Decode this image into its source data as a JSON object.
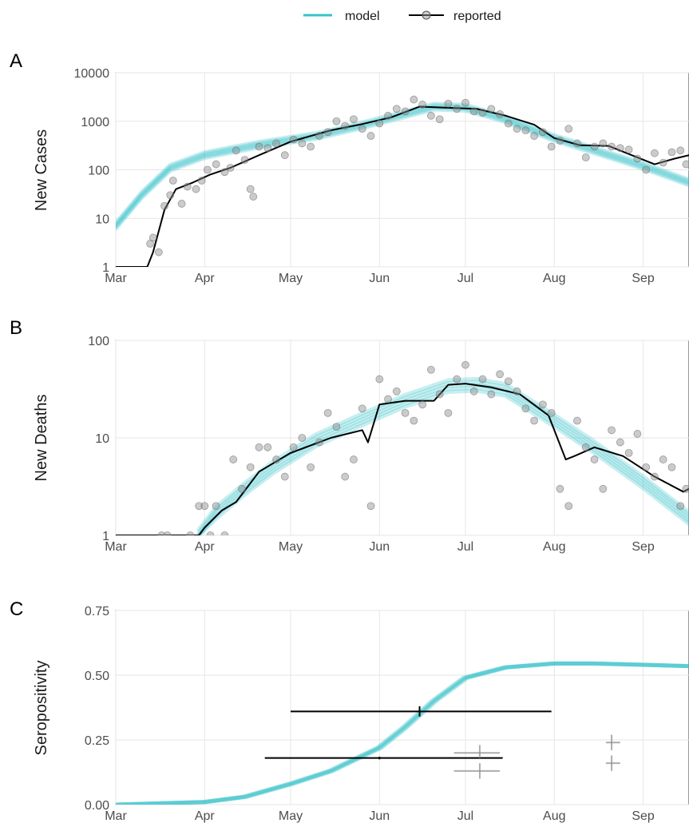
{
  "legend": {
    "position": "top-center",
    "items": [
      {
        "label": "model",
        "color": "#36c3c9",
        "marker": "line"
      },
      {
        "label": "reported",
        "color": "#000000",
        "marker": "line-with-circle"
      }
    ]
  },
  "chart_data": [
    {
      "panel": "A",
      "type": "line",
      "ylabel": "New Cases",
      "xlabel": "",
      "yscale": "log",
      "ylim": [
        1,
        10000
      ],
      "yticks": [
        "1",
        "10",
        "100",
        "1000",
        "10000"
      ],
      "xlim_days": [
        0,
        200
      ],
      "x_ticks": [
        "Mar",
        "Apr",
        "May",
        "Jun",
        "Jul",
        "Aug",
        "Sep"
      ],
      "grid": true,
      "series": [
        {
          "name": "model",
          "kind": "ensemble-band",
          "color": "#36c3c9",
          "dates": [
            "2020-03-01",
            "2020-03-10",
            "2020-03-20",
            "2020-04-01",
            "2020-04-20",
            "2020-05-10",
            "2020-05-25",
            "2020-06-10",
            "2020-06-20",
            "2020-07-01",
            "2020-07-15",
            "2020-08-01",
            "2020-08-15",
            "2020-09-01",
            "2020-09-17"
          ],
          "values": [
            7,
            30,
            110,
            200,
            330,
            500,
            800,
            1400,
            2000,
            1900,
            1100,
            450,
            250,
            120,
            55
          ]
        },
        {
          "name": "reported",
          "kind": "line",
          "color": "#000000",
          "dates": [
            "2020-03-01",
            "2020-03-12",
            "2020-03-14",
            "2020-03-18",
            "2020-03-22",
            "2020-03-28",
            "2020-04-03",
            "2020-04-10",
            "2020-04-20",
            "2020-05-01",
            "2020-05-15",
            "2020-05-25",
            "2020-06-05",
            "2020-06-15",
            "2020-06-25",
            "2020-07-05",
            "2020-07-15",
            "2020-07-25",
            "2020-08-01",
            "2020-08-10",
            "2020-08-20",
            "2020-08-28",
            "2020-09-05",
            "2020-09-12",
            "2020-09-17"
          ],
          "values": [
            1,
            1,
            2,
            15,
            40,
            55,
            80,
            110,
            200,
            380,
            650,
            850,
            1200,
            2000,
            1900,
            1800,
            1300,
            850,
            450,
            320,
            310,
            200,
            130,
            170,
            200
          ]
        },
        {
          "name": "reported",
          "kind": "points",
          "color": "#000000",
          "dates": [
            "2020-03-13",
            "2020-03-14",
            "2020-03-16",
            "2020-03-18",
            "2020-03-20",
            "2020-03-21",
            "2020-03-24",
            "2020-03-26",
            "2020-03-29",
            "2020-03-31",
            "2020-04-02",
            "2020-04-05",
            "2020-04-08",
            "2020-04-10",
            "2020-04-12",
            "2020-04-15",
            "2020-04-17",
            "2020-04-18",
            "2020-04-20",
            "2020-04-23",
            "2020-04-26",
            "2020-04-29",
            "2020-05-02",
            "2020-05-05",
            "2020-05-08",
            "2020-05-11",
            "2020-05-14",
            "2020-05-17",
            "2020-05-20",
            "2020-05-23",
            "2020-05-26",
            "2020-05-29",
            "2020-06-01",
            "2020-06-04",
            "2020-06-07",
            "2020-06-10",
            "2020-06-13",
            "2020-06-16",
            "2020-06-19",
            "2020-06-22",
            "2020-06-25",
            "2020-06-28",
            "2020-07-01",
            "2020-07-04",
            "2020-07-07",
            "2020-07-10",
            "2020-07-13",
            "2020-07-16",
            "2020-07-19",
            "2020-07-22",
            "2020-07-25",
            "2020-07-28",
            "2020-07-31",
            "2020-08-03",
            "2020-08-06",
            "2020-08-09",
            "2020-08-12",
            "2020-08-15",
            "2020-08-18",
            "2020-08-21",
            "2020-08-24",
            "2020-08-27",
            "2020-08-30",
            "2020-09-02",
            "2020-09-05",
            "2020-09-08",
            "2020-09-11",
            "2020-09-14",
            "2020-09-16"
          ],
          "values": [
            3,
            4,
            2,
            18,
            30,
            60,
            20,
            45,
            40,
            60,
            100,
            130,
            90,
            110,
            250,
            160,
            40,
            28,
            300,
            280,
            350,
            200,
            420,
            350,
            300,
            500,
            600,
            1000,
            800,
            1100,
            700,
            500,
            900,
            1300,
            1800,
            1600,
            2800,
            2200,
            1300,
            1100,
            2300,
            1800,
            2400,
            1600,
            1500,
            1800,
            1400,
            900,
            700,
            650,
            500,
            600,
            300,
            400,
            700,
            350,
            180,
            300,
            350,
            300,
            280,
            260,
            170,
            100,
            220,
            140,
            230,
            250,
            130
          ]
        }
      ]
    },
    {
      "panel": "B",
      "type": "line",
      "ylabel": "New Deaths",
      "xlabel": "",
      "yscale": "log",
      "ylim": [
        1,
        100
      ],
      "yticks": [
        "1",
        "10",
        "100"
      ],
      "xlim_days": [
        0,
        200
      ],
      "x_ticks": [
        "Mar",
        "Apr",
        "May",
        "Jun",
        "Jul",
        "Aug",
        "Sep"
      ],
      "grid": true,
      "series": [
        {
          "name": "model",
          "kind": "ensemble-band",
          "color": "#36c3c9",
          "dates": [
            "2020-03-30",
            "2020-04-05",
            "2020-04-15",
            "2020-04-25",
            "2020-05-10",
            "2020-05-25",
            "2020-06-10",
            "2020-06-25",
            "2020-07-05",
            "2020-07-15",
            "2020-08-01",
            "2020-08-15",
            "2020-09-01",
            "2020-09-17"
          ],
          "values": [
            1,
            1.7,
            3,
            5,
            9.5,
            15,
            24,
            34,
            35,
            31,
            15,
            8,
            3.5,
            1.5
          ]
        },
        {
          "name": "reported",
          "kind": "line",
          "color": "#000000",
          "dates": [
            "2020-03-01",
            "2020-03-30",
            "2020-04-01",
            "2020-04-07",
            "2020-04-12",
            "2020-04-20",
            "2020-05-01",
            "2020-05-15",
            "2020-05-26",
            "2020-05-28",
            "2020-06-01",
            "2020-06-10",
            "2020-06-20",
            "2020-06-25",
            "2020-07-01",
            "2020-07-10",
            "2020-07-20",
            "2020-07-30",
            "2020-08-05",
            "2020-08-08",
            "2020-08-15",
            "2020-08-25",
            "2020-09-05",
            "2020-09-15",
            "2020-09-17"
          ],
          "values": [
            1,
            1,
            1.2,
            1.8,
            2.2,
            4.5,
            7,
            10,
            12,
            9,
            22,
            24,
            24,
            35,
            36,
            33,
            28,
            17,
            6,
            6.5,
            8,
            6.5,
            4,
            2.8,
            3
          ]
        },
        {
          "name": "reported",
          "kind": "points",
          "color": "#000000",
          "dates": [
            "2020-03-17",
            "2020-03-19",
            "2020-03-27",
            "2020-03-30",
            "2020-04-01",
            "2020-04-03",
            "2020-04-05",
            "2020-04-08",
            "2020-04-11",
            "2020-04-14",
            "2020-04-17",
            "2020-04-20",
            "2020-04-23",
            "2020-04-26",
            "2020-04-29",
            "2020-05-02",
            "2020-05-05",
            "2020-05-08",
            "2020-05-11",
            "2020-05-14",
            "2020-05-17",
            "2020-05-20",
            "2020-05-23",
            "2020-05-26",
            "2020-05-29",
            "2020-06-01",
            "2020-06-04",
            "2020-06-07",
            "2020-06-10",
            "2020-06-13",
            "2020-06-16",
            "2020-06-19",
            "2020-06-22",
            "2020-06-25",
            "2020-06-28",
            "2020-07-01",
            "2020-07-04",
            "2020-07-07",
            "2020-07-10",
            "2020-07-13",
            "2020-07-16",
            "2020-07-19",
            "2020-07-22",
            "2020-07-25",
            "2020-07-28",
            "2020-07-31",
            "2020-08-03",
            "2020-08-06",
            "2020-08-09",
            "2020-08-12",
            "2020-08-15",
            "2020-08-18",
            "2020-08-21",
            "2020-08-24",
            "2020-08-27",
            "2020-08-30",
            "2020-09-02",
            "2020-09-05",
            "2020-09-08",
            "2020-09-11",
            "2020-09-14",
            "2020-09-16"
          ],
          "values": [
            1,
            1,
            1,
            2,
            2,
            1,
            2,
            1,
            6,
            3,
            5,
            8,
            8,
            6,
            4,
            8,
            10,
            5,
            9,
            18,
            13,
            4,
            6,
            20,
            2,
            40,
            25,
            30,
            18,
            15,
            22,
            50,
            28,
            18,
            40,
            56,
            30,
            40,
            28,
            45,
            38,
            30,
            20,
            15,
            22,
            18,
            3,
            2,
            15,
            8,
            6,
            3,
            12,
            9,
            7,
            11,
            5,
            4,
            6,
            5,
            2,
            3
          ]
        }
      ]
    },
    {
      "panel": "C",
      "type": "line",
      "ylabel": "Seropositivity",
      "xlabel": "",
      "yscale": "linear",
      "ylim": [
        0,
        0.75
      ],
      "yticks": [
        "0.00",
        "0.25",
        "0.50",
        "0.75"
      ],
      "xlim_days": [
        0,
        200
      ],
      "x_ticks": [
        "Mar",
        "Apr",
        "May",
        "Jun",
        "Jul",
        "Aug",
        "Sep"
      ],
      "grid": true,
      "series": [
        {
          "name": "model",
          "kind": "ensemble-band",
          "color": "#36c3c9",
          "dates": [
            "2020-03-01",
            "2020-04-01",
            "2020-04-15",
            "2020-05-01",
            "2020-05-15",
            "2020-06-01",
            "2020-06-10",
            "2020-06-20",
            "2020-07-01",
            "2020-07-15",
            "2020-08-01",
            "2020-08-15",
            "2020-09-01",
            "2020-09-17"
          ],
          "values": [
            0,
            0.01,
            0.03,
            0.08,
            0.13,
            0.22,
            0.3,
            0.4,
            0.49,
            0.53,
            0.545,
            0.545,
            0.54,
            0.535
          ]
        }
      ],
      "survey_estimates": [
        {
          "center": "2020-06-15",
          "value": 0.36,
          "x_from": "2020-05-01",
          "x_to": "2020-07-31",
          "y_low": 0.34,
          "y_high": 0.38,
          "emphasis": "dark"
        },
        {
          "center": "2020-06-01",
          "value": 0.18,
          "x_from": "2020-04-22",
          "x_to": "2020-07-14",
          "y_low": 0.175,
          "y_high": 0.185,
          "emphasis": "dark"
        },
        {
          "center": "2020-07-06",
          "value": 0.2,
          "x_from": "2020-06-27",
          "x_to": "2020-07-13",
          "y_low": 0.18,
          "y_high": 0.23,
          "emphasis": "light"
        },
        {
          "center": "2020-07-06",
          "value": 0.13,
          "x_from": "2020-06-27",
          "x_to": "2020-07-13",
          "y_low": 0.1,
          "y_high": 0.16,
          "emphasis": "light"
        },
        {
          "center": "2020-08-21",
          "value": 0.24,
          "x_from": "2020-08-19",
          "x_to": "2020-08-24",
          "y_low": 0.21,
          "y_high": 0.27,
          "emphasis": "light"
        },
        {
          "center": "2020-08-21",
          "value": 0.16,
          "x_from": "2020-08-19",
          "x_to": "2020-08-24",
          "y_low": 0.13,
          "y_high": 0.19,
          "emphasis": "light"
        }
      ]
    }
  ]
}
